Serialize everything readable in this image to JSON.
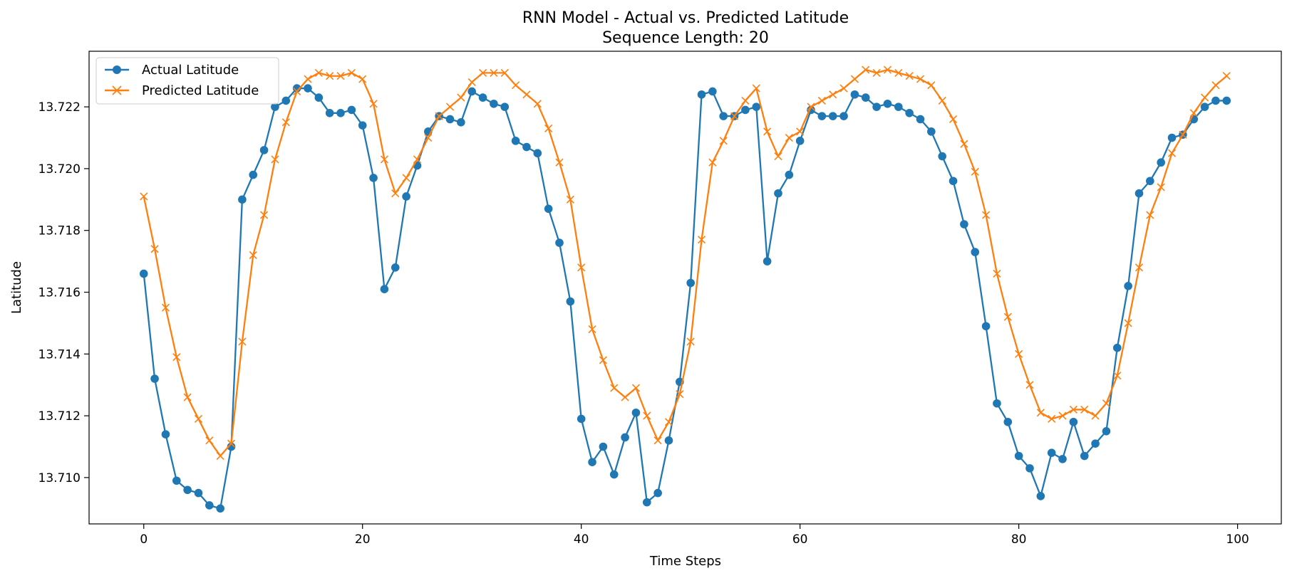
{
  "chart_data": {
    "type": "line",
    "title": "RNN Model - Actual vs. Predicted Latitude",
    "subtitle": "Sequence Length: 20",
    "xlabel": "Time Steps",
    "ylabel": "Latitude",
    "xlim": [
      -5,
      104
    ],
    "ylim": [
      13.7085,
      13.7238
    ],
    "xticks": [
      0,
      20,
      40,
      60,
      80,
      100
    ],
    "xtick_labels": [
      "0",
      "20",
      "40",
      "60",
      "80",
      "100"
    ],
    "yticks": [
      13.71,
      13.712,
      13.714,
      13.716,
      13.718,
      13.72,
      13.722
    ],
    "ytick_labels": [
      "13.710",
      "13.712",
      "13.714",
      "13.716",
      "13.718",
      "13.720",
      "13.722"
    ],
    "grid": false,
    "legend_position": "top-left",
    "x": [
      0,
      1,
      2,
      3,
      4,
      5,
      6,
      7,
      8,
      9,
      10,
      11,
      12,
      13,
      14,
      15,
      16,
      17,
      18,
      19,
      20,
      21,
      22,
      23,
      24,
      25,
      26,
      27,
      28,
      29,
      30,
      31,
      32,
      33,
      34,
      35,
      36,
      37,
      38,
      39,
      40,
      41,
      42,
      43,
      44,
      45,
      46,
      47,
      48,
      49,
      50,
      51,
      52,
      53,
      54,
      55,
      56,
      57,
      58,
      59,
      60,
      61,
      62,
      63,
      64,
      65,
      66,
      67,
      68,
      69,
      70,
      71,
      72,
      73,
      74,
      75,
      76,
      77,
      78,
      79,
      80,
      81,
      82,
      83,
      84,
      85,
      86,
      87,
      88,
      89,
      90,
      91,
      92,
      93,
      94,
      95,
      96,
      97,
      98,
      99
    ],
    "series": [
      {
        "name": "Actual Latitude",
        "color": "#1f77b4",
        "marker": "circle",
        "values": [
          13.7166,
          13.7132,
          13.7114,
          13.7099,
          13.7096,
          13.7095,
          13.7091,
          13.709,
          13.711,
          13.719,
          13.7198,
          13.7206,
          13.722,
          13.7222,
          13.7226,
          13.7226,
          13.7223,
          13.7218,
          13.7218,
          13.7219,
          13.7214,
          13.7197,
          13.7161,
          13.7168,
          13.7191,
          13.7201,
          13.7212,
          13.7217,
          13.7216,
          13.7215,
          13.7225,
          13.7223,
          13.7221,
          13.722,
          13.7209,
          13.7207,
          13.7205,
          13.7187,
          13.7176,
          13.7157,
          13.7119,
          13.7105,
          13.711,
          13.7101,
          13.7113,
          13.7121,
          13.7092,
          13.7095,
          13.7112,
          13.7131,
          13.7163,
          13.7224,
          13.7225,
          13.7217,
          13.7217,
          13.7219,
          13.722,
          13.717,
          13.7192,
          13.7198,
          13.7209,
          13.7219,
          13.7217,
          13.7217,
          13.7217,
          13.7224,
          13.7223,
          13.722,
          13.7221,
          13.722,
          13.7218,
          13.7216,
          13.7212,
          13.7204,
          13.7196,
          13.7182,
          13.7173,
          13.7149,
          13.7124,
          13.7118,
          13.7107,
          13.7103,
          13.7094,
          13.7108,
          13.7106,
          13.7118,
          13.7107,
          13.7111,
          13.7115,
          13.7142,
          13.7162,
          13.7192,
          13.7196,
          13.7202,
          13.721,
          13.7211,
          13.7216,
          13.722,
          13.7222,
          13.7222
        ]
      },
      {
        "name": "Predicted Latitude",
        "color": "#ff7f0e",
        "marker": "x",
        "values": [
          13.7191,
          13.7174,
          13.7155,
          13.7139,
          13.7126,
          13.7119,
          13.7112,
          13.7107,
          13.7111,
          13.7144,
          13.7172,
          13.7185,
          13.7203,
          13.7215,
          13.7225,
          13.7229,
          13.7231,
          13.723,
          13.723,
          13.7231,
          13.7229,
          13.7221,
          13.7203,
          13.7192,
          13.7197,
          13.7203,
          13.721,
          13.7217,
          13.722,
          13.7223,
          13.7228,
          13.7231,
          13.7231,
          13.7231,
          13.7227,
          13.7224,
          13.7221,
          13.7213,
          13.7202,
          13.719,
          13.7168,
          13.7148,
          13.7138,
          13.7129,
          13.7126,
          13.7129,
          13.712,
          13.7112,
          13.7118,
          13.7127,
          13.7144,
          13.7177,
          13.7202,
          13.7209,
          13.7217,
          13.7222,
          13.7226,
          13.7212,
          13.7204,
          13.721,
          13.7212,
          13.722,
          13.7222,
          13.7224,
          13.7226,
          13.7229,
          13.7232,
          13.7231,
          13.7232,
          13.7231,
          13.723,
          13.7229,
          13.7227,
          13.7222,
          13.7216,
          13.7208,
          13.7199,
          13.7185,
          13.7166,
          13.7152,
          13.714,
          13.713,
          13.7121,
          13.7119,
          13.712,
          13.7122,
          13.7122,
          13.712,
          13.7124,
          13.7133,
          13.715,
          13.7168,
          13.7185,
          13.7194,
          13.7205,
          13.7211,
          13.7218,
          13.7223,
          13.7227,
          13.723
        ]
      }
    ]
  }
}
